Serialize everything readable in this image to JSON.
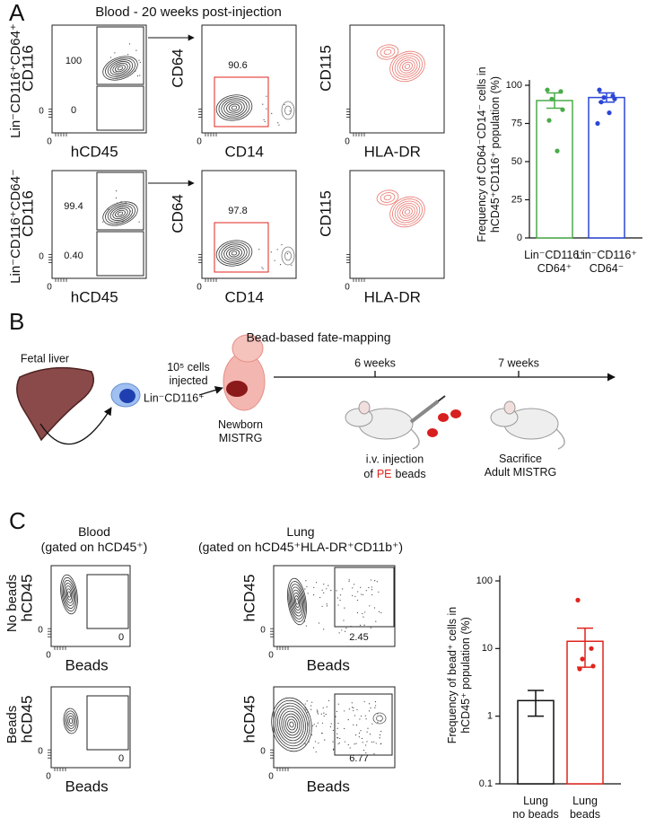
{
  "figure": {
    "panel_labels": [
      "A",
      "B",
      "C"
    ],
    "A": {
      "title": "Blood - 20 weeks post-injection",
      "row_labels": [
        "Lin⁻CD116⁺CD64⁺",
        "Lin⁻CD116⁺CD64⁻"
      ],
      "row_colors": [
        "#3f9e3f",
        "#2742c8"
      ],
      "plots": [
        [
          {
            "xlabel": "hCD45",
            "ylabel": "CD116",
            "x0": "0",
            "y0": "0",
            "gates": [
              "100",
              "0"
            ]
          },
          {
            "xlabel": "CD14",
            "ylabel": "CD64",
            "x0": "0",
            "gates": [
              "90.6"
            ]
          },
          {
            "xlabel": "HLA-DR",
            "ylabel": "CD115",
            "x0": "0"
          }
        ],
        [
          {
            "xlabel": "hCD45",
            "ylabel": "CD116",
            "x0": "0",
            "y0": "0",
            "gates": [
              "99.4",
              "0.40"
            ]
          },
          {
            "xlabel": "CD14",
            "ylabel": "CD64",
            "x0": "0",
            "gates": [
              "97.8"
            ]
          },
          {
            "xlabel": "HLA-DR",
            "ylabel": "CD115",
            "x0": "0"
          }
        ]
      ]
    },
    "B": {
      "title": "Bead-based fate-mapping",
      "source": "Fetal liver",
      "cells": "Lin⁻CD116⁺",
      "dose": "10⁵ cells\ninjected",
      "recipient": "Newborn\nMISTRG",
      "timepoints": [
        "6 weeks",
        "7 weeks"
      ],
      "injection": [
        "i.v. injection",
        "of",
        "PE",
        "beads"
      ],
      "endpoint": "Sacrifice\nAdult MISTRG"
    },
    "C": {
      "columns": [
        "Blood\n(gated on hCD45⁺)",
        "Lung\n(gated on hCD45⁺HLA-DR⁺CD11b⁺)"
      ],
      "row_labels": [
        "No beads",
        "Beads"
      ],
      "row_colors": [
        "#111111",
        "#e0241c"
      ],
      "plots": [
        [
          {
            "xlabel": "Beads",
            "ylabel": "hCD45",
            "x0": "0",
            "y0": "0",
            "gates": [
              "0"
            ]
          },
          {
            "xlabel": "Beads",
            "ylabel": "hCD45",
            "x0": "0",
            "y0": "0",
            "gates": [
              "2.45"
            ]
          }
        ],
        [
          {
            "xlabel": "Beads",
            "ylabel": "hCD45",
            "x0": "0",
            "y0": "0",
            "gates": [
              "0"
            ]
          },
          {
            "xlabel": "Beads",
            "ylabel": "hCD45",
            "x0": "0",
            "y0": "0",
            "gates": [
              "6.77"
            ]
          }
        ]
      ]
    }
  },
  "chart_data": [
    {
      "type": "bar",
      "ylabel": "Frequency of CD64⁻CD14⁻ cells in\nhCD45⁺CD116⁺ population (%)",
      "categories": [
        "Lin⁻CD116⁺\nCD64⁺",
        "Lin⁻CD116⁺\nCD64⁻"
      ],
      "colors": [
        "#4aab4a",
        "#2b46d6"
      ],
      "values": [
        90,
        92
      ],
      "errors": [
        5,
        3
      ],
      "points": [
        [
          97,
          96,
          91,
          84,
          77,
          57
        ],
        [
          97,
          93,
          92,
          91,
          89,
          82,
          75
        ]
      ],
      "ylim": [
        0,
        100
      ],
      "yticks": [
        0,
        25,
        50,
        75,
        100
      ]
    },
    {
      "type": "bar",
      "log_scale": true,
      "ylabel": "Frequency of bead⁺ cells in\nhCD45⁺ population (%)",
      "categories": [
        "Lung\nno beads",
        "Lung\nbeads"
      ],
      "colors": [
        "#111111",
        "#e0241c"
      ],
      "values": [
        1.7,
        12.8
      ],
      "error_bars": [
        [
          1.0,
          2.4
        ],
        [
          5.3,
          20
        ]
      ],
      "points": [
        [],
        [
          52,
          10,
          7,
          5.5,
          5
        ]
      ],
      "ylim": [
        0.1,
        100
      ],
      "yticks": [
        0.1,
        1,
        10,
        100
      ]
    }
  ]
}
